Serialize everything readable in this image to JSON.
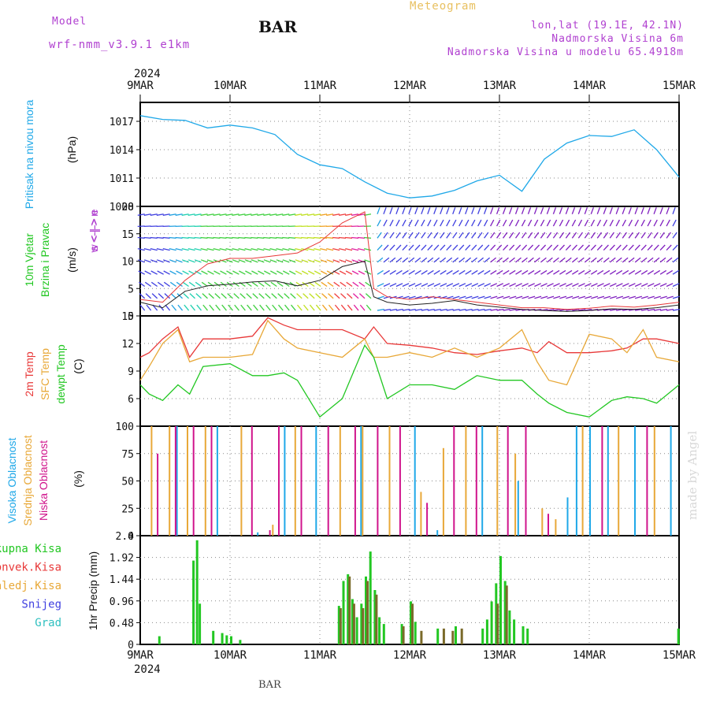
{
  "header": {
    "model_label": "Model",
    "model_name": "wrf-nmm_v3.9.1 e1km",
    "station": "BAR",
    "title": "Meteogram",
    "coords": "lon,lat (19.1E, 42.1N)",
    "elevation": "Nadmorska Visina 6m",
    "model_elevation": "Nadmorska Visina u modelu 65.4918m",
    "footer_station": "BAR",
    "watermark": "made by Angel"
  },
  "colors": {
    "purple": "#b040d0",
    "orange": "#e8c060",
    "cyan": "#1fa8e8",
    "green": "#22c722",
    "red": "#e83838",
    "sfc": "#e8a838",
    "magenta": "#d0148c",
    "blue": "#4040e0",
    "teal": "#30c0c0",
    "brown": "#7a6a2a"
  },
  "chart_data": [
    {
      "type": "line",
      "panel": "pressure",
      "year": "2024",
      "x_tick_labels": [
        "9MAR",
        "10MAR",
        "11MAR",
        "12MAR",
        "13MAR",
        "14MAR",
        "15MAR"
      ],
      "ylabel": [
        "Pritisak na nivou mora",
        "(hPa)"
      ],
      "ylim": [
        1008,
        1019
      ],
      "y_ticks": [
        1008,
        1011,
        1014,
        1017
      ],
      "y_tick_labels": [
        "1008",
        "1011",
        "1014",
        "1017"
      ],
      "grid": true,
      "x": [
        0,
        0.25,
        0.5,
        0.75,
        1.0,
        1.25,
        1.5,
        1.75,
        2.0,
        2.25,
        2.5,
        2.75,
        3.0,
        3.25,
        3.5,
        3.75,
        4.0,
        4.25,
        4.5,
        4.75,
        5.0,
        5.25,
        5.5,
        5.75,
        6.0
      ],
      "series": [
        {
          "values": [
            1017.6,
            1017.2,
            1017.1,
            1016.3,
            1016.6,
            1016.3,
            1015.6,
            1013.5,
            1012.4,
            1012.0,
            1010.6,
            1009.4,
            1008.9,
            1009.1,
            1009.7,
            1010.7,
            1011.3,
            1009.6,
            1013.0,
            1014.7,
            1015.5,
            1015.4,
            1016.1,
            1014.0,
            1011.1
          ]
        }
      ]
    },
    {
      "type": "line",
      "panel": "wind",
      "ylabel": [
        "10m Vjetar",
        "Brzina i Pravac",
        "(m/s)"
      ],
      "legend_compass": [
        "w <-|-> e",
        "s <-|-> n"
      ],
      "ylim": [
        0,
        20
      ],
      "y_ticks": [
        0,
        5,
        10,
        15,
        20
      ],
      "y_tick_labels": [
        "0",
        "5",
        "10",
        "15",
        "20"
      ],
      "grid": true,
      "x": [
        0,
        0.25,
        0.5,
        0.75,
        1.0,
        1.25,
        1.5,
        1.75,
        2.0,
        2.25,
        2.5,
        2.6,
        2.75,
        3.0,
        3.25,
        3.5,
        3.75,
        4.0,
        4.25,
        4.5,
        4.75,
        5.0,
        5.25,
        5.5,
        5.75,
        6.0
      ],
      "series": [
        {
          "name": "speed",
          "values": [
            2.5,
            1.5,
            4.5,
            5.5,
            5.8,
            6.2,
            6.4,
            5.5,
            6.5,
            9.0,
            10.0,
            3.5,
            2.5,
            2.0,
            2.3,
            2.8,
            2.0,
            1.6,
            1.2,
            1.0,
            0.8,
            1.0,
            1.3,
            1.2,
            1.5,
            2.0
          ]
        },
        {
          "name": "gust",
          "values": [
            3.0,
            2.5,
            6.5,
            9.5,
            10.5,
            10.5,
            11.0,
            11.5,
            13.5,
            17.0,
            19.0,
            5.0,
            3.5,
            3.0,
            3.5,
            3.0,
            2.5,
            2.0,
            1.5,
            1.5,
            1.2,
            1.4,
            1.8,
            1.6,
            2.0,
            2.5
          ]
        }
      ]
    },
    {
      "type": "line",
      "panel": "temperature",
      "ylabel": [
        "2m Temp",
        "SFC Temp",
        "dewpt Temp",
        "(C)"
      ],
      "ylim": [
        3,
        15
      ],
      "y_ticks": [
        6,
        9,
        12,
        15
      ],
      "y_tick_labels": [
        "6",
        "9",
        "12",
        "15"
      ],
      "grid": true,
      "x": [
        0,
        0.1,
        0.25,
        0.42,
        0.55,
        0.7,
        1.0,
        1.25,
        1.42,
        1.6,
        1.75,
        2.0,
        2.25,
        2.5,
        2.6,
        2.75,
        3.0,
        3.25,
        3.5,
        3.75,
        4.0,
        4.25,
        4.42,
        4.55,
        4.75,
        5.0,
        5.25,
        5.42,
        5.6,
        5.75,
        6.0
      ],
      "series": [
        {
          "name": "2m Temp",
          "values": [
            10.5,
            11.0,
            12.5,
            13.8,
            10.5,
            12.5,
            12.5,
            12.8,
            14.8,
            14.0,
            13.5,
            13.5,
            13.5,
            12.5,
            13.8,
            12.0,
            11.8,
            11.5,
            11.0,
            10.8,
            11.2,
            11.5,
            11.0,
            12.2,
            11.0,
            11.0,
            11.2,
            11.5,
            12.5,
            12.5,
            12.0
          ]
        },
        {
          "name": "SFC Temp",
          "values": [
            8.0,
            9.5,
            12.0,
            13.5,
            10.0,
            10.5,
            10.5,
            10.8,
            14.5,
            12.5,
            11.5,
            11.0,
            10.5,
            12.5,
            10.5,
            10.5,
            11.0,
            10.5,
            11.5,
            10.5,
            11.5,
            13.5,
            10.0,
            8.0,
            7.5,
            13.0,
            12.5,
            11.0,
            13.5,
            10.5,
            10.0
          ]
        },
        {
          "name": "dewpt Temp",
          "values": [
            7.5,
            6.5,
            5.8,
            7.5,
            6.5,
            9.5,
            9.8,
            8.5,
            8.5,
            8.8,
            8.0,
            4.0,
            6.0,
            11.8,
            10.5,
            6.0,
            7.5,
            7.5,
            7.0,
            8.5,
            8.0,
            8.0,
            6.5,
            5.5,
            4.5,
            4.0,
            5.8,
            6.2,
            6.0,
            5.5,
            7.5
          ]
        }
      ]
    },
    {
      "type": "bar",
      "panel": "cloud",
      "ylabel": [
        "Visoka Oblacnost",
        "Srednja Oblacnost",
        "Niska Oblacnost",
        "(%)"
      ],
      "ylim": [
        0,
        100
      ],
      "y_ticks": [
        0,
        25,
        50,
        75,
        100
      ],
      "y_tick_labels": [
        "0",
        "25",
        "50",
        "75",
        "100"
      ],
      "grid": true,
      "series": [
        {
          "name": "Visoka Oblacnost",
          "x": [
            0.4,
            0.85,
            1.3,
            1.6,
            1.95,
            2.45,
            3.05,
            3.3,
            3.8,
            4.2,
            4.75,
            4.85,
            5.0,
            5.2,
            5.5,
            5.9
          ],
          "values": [
            100,
            100,
            3,
            100,
            100,
            100,
            100,
            5,
            100,
            50,
            35,
            100,
            100,
            100,
            100,
            100
          ]
        },
        {
          "name": "Srednja Oblacnost",
          "x": [
            0.1,
            0.3,
            0.5,
            0.7,
            1.1,
            1.45,
            1.7,
            2.2,
            2.45,
            2.75,
            3.1,
            3.35,
            3.6,
            3.95,
            4.15,
            4.45,
            4.6,
            4.9,
            5.3,
            5.7
          ],
          "values": [
            100,
            100,
            100,
            100,
            100,
            10,
            100,
            100,
            100,
            100,
            40,
            80,
            100,
            100,
            75,
            25,
            15,
            100,
            100,
            100
          ]
        },
        {
          "name": "Niska Oblacnost",
          "x": [
            0.15,
            0.35,
            0.55,
            0.75,
            1.2,
            1.4,
            1.5,
            1.75,
            2.05,
            2.35,
            2.6,
            2.85,
            3.15,
            3.45,
            3.7,
            4.05,
            4.25,
            4.5,
            5.1,
            5.6
          ],
          "values": [
            75,
            100,
            100,
            100,
            100,
            5,
            100,
            100,
            100,
            100,
            100,
            100,
            30,
            100,
            100,
            100,
            100,
            20,
            100,
            100
          ]
        }
      ]
    },
    {
      "type": "bar",
      "panel": "precip",
      "ylabel": [
        "1hr Precip (mm)"
      ],
      "legend": [
        "Ukupna Kisa",
        "Konvek.Kisa",
        "Zaledj.Kisa",
        "Snijeg",
        "Grad"
      ],
      "ylim": [
        0,
        2.4
      ],
      "y_ticks": [
        0,
        0.48,
        0.96,
        1.44,
        1.92,
        2.4
      ],
      "y_tick_labels": [
        "0",
        "0.48",
        "0.96",
        "1.44",
        "1.92",
        "2.4"
      ],
      "grid": true,
      "series": [
        {
          "name": "Ukupna Kisa",
          "x": [
            0.2,
            0.58,
            0.62,
            0.65,
            0.8,
            0.9,
            0.95,
            1.0,
            1.1,
            2.2,
            2.25,
            2.3,
            2.35,
            2.4,
            2.45,
            2.5,
            2.55,
            2.6,
            2.65,
            2.7,
            2.9,
            3.0,
            3.05,
            3.3,
            3.5,
            3.8,
            3.85,
            3.9,
            3.95,
            4.0,
            4.05,
            4.1,
            4.15,
            4.25,
            4.3,
            5.98
          ],
          "values": [
            0.18,
            1.85,
            2.3,
            0.9,
            0.3,
            0.25,
            0.2,
            0.18,
            0.1,
            0.85,
            1.4,
            1.55,
            1.0,
            0.6,
            0.9,
            1.5,
            2.05,
            1.2,
            0.6,
            0.45,
            0.45,
            0.95,
            0.5,
            0.35,
            0.4,
            0.35,
            0.55,
            0.95,
            1.35,
            1.95,
            1.4,
            0.75,
            0.55,
            0.4,
            0.35,
            0.35
          ]
        },
        {
          "name": "Konvek.Kisa",
          "x": [
            2.2,
            2.3,
            2.35,
            2.45,
            2.5,
            2.6,
            2.9,
            3.0,
            3.1,
            3.35,
            3.45,
            3.55,
            3.95,
            4.05
          ],
          "values": [
            0.8,
            1.5,
            0.9,
            0.8,
            1.4,
            1.1,
            0.4,
            0.9,
            0.3,
            0.35,
            0.3,
            0.35,
            0.9,
            1.3
          ]
        }
      ]
    }
  ]
}
